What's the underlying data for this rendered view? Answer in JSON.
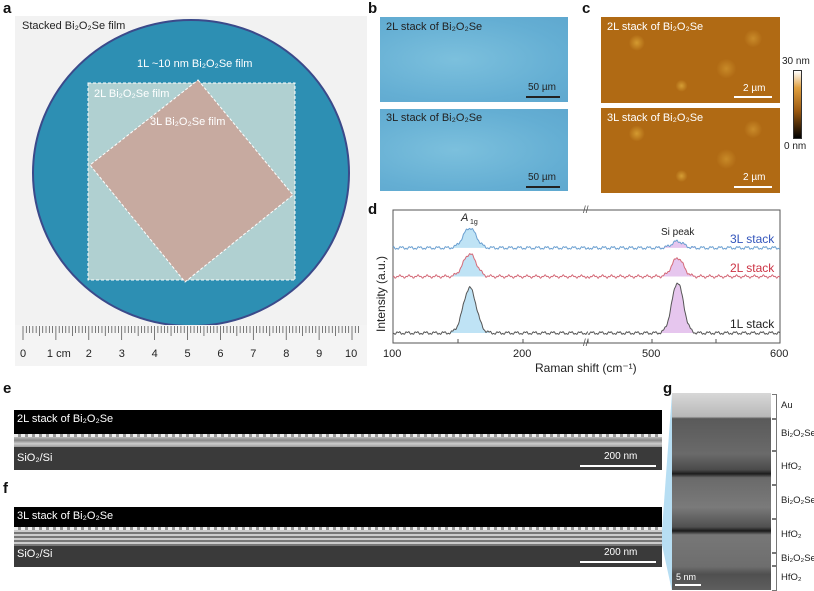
{
  "panels": {
    "a": {
      "label": "a",
      "title": "Stacked Bi₂O₂Se film",
      "film_1L": "1L ~10 nm Bi₂O₂Se film",
      "film_2L": "2L Bi₂O₂Se film",
      "film_3L": "3L Bi₂O₂Se film",
      "ruler_labels": [
        "0",
        "1 cm",
        "2",
        "3",
        "4",
        "5",
        "6",
        "7",
        "8",
        "9",
        "10"
      ]
    },
    "b": {
      "label": "b",
      "top_caption": "2L stack of Bi₂O₂Se",
      "bottom_caption": "3L stack of Bi₂O₂Se",
      "scale": "50 µm"
    },
    "c": {
      "label": "c",
      "top_caption": "2L stack of Bi₂O₂Se",
      "bottom_caption": "3L stack of Bi₂O₂Se",
      "scale": "2 µm",
      "colorbar_max": "30 nm",
      "colorbar_min": "0 nm"
    },
    "d": {
      "label": "d"
    },
    "e": {
      "label": "e",
      "caption": "2L stack of Bi₂O₂Se",
      "substrate": "SiO₂/Si",
      "scale": "200 nm"
    },
    "f": {
      "label": "f",
      "caption": "3L stack of Bi₂O₂Se",
      "substrate": "SiO₂/Si",
      "scale": "200 nm"
    },
    "g": {
      "label": "g",
      "layers": [
        "Au",
        "Bi₂O₂Se",
        "HfO₂",
        "Bi₂O₂Se",
        "HfO₂",
        "Bi₂O₂Se",
        "HfO₂"
      ],
      "scale": "5 nm"
    }
  },
  "chart_data": {
    "type": "line",
    "xlabel": "Raman shift (cm⁻¹)",
    "ylabel": "Intensity (a.u.)",
    "x_ticks": [
      "100",
      "200",
      "500",
      "600"
    ],
    "x_segments": [
      [
        100,
        250
      ],
      [
        450,
        600
      ]
    ],
    "ylim": [
      0,
      10
    ],
    "annotations": {
      "a1g": "A",
      "a1g_sub": "1g",
      "si": "Si peak"
    },
    "peaks_cm": [
      159,
      520
    ],
    "series": [
      {
        "name": "3L stack",
        "color": "#3355bb",
        "line": "#6a9fd0",
        "baseline": 7.15,
        "peak_heights": [
          1.5,
          0.5
        ]
      },
      {
        "name": "2L stack",
        "color": "#cc3344",
        "line": "#d46a78",
        "baseline": 5.0,
        "peak_heights": [
          1.7,
          1.4
        ]
      },
      {
        "name": "1L stack",
        "color": "#222222",
        "line": "#555555",
        "baseline": 0.75,
        "peak_heights": [
          3.4,
          3.8
        ]
      }
    ],
    "fill_colors": [
      "#bfe3f5",
      "#e6c6ee"
    ]
  }
}
